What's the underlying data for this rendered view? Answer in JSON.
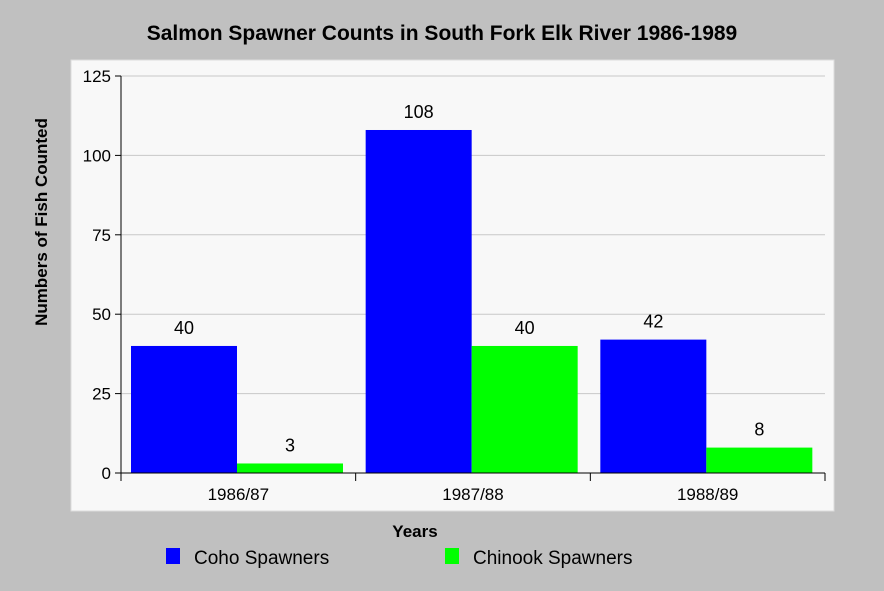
{
  "chart_data": {
    "type": "bar",
    "title": "Salmon Spawner Counts in South Fork Elk River 1986-1989",
    "xlabel": "Years",
    "ylabel": "Numbers of Fish Counted",
    "categories": [
      "1986/87",
      "1987/88",
      "1988/89"
    ],
    "series": [
      {
        "name": "Coho Spawners",
        "color": "#0000ff",
        "values": [
          40,
          108,
          42
        ]
      },
      {
        "name": "Chinook Spawners",
        "color": "#00ff00",
        "values": [
          3,
          40,
          8
        ]
      }
    ],
    "ylim": [
      0,
      125
    ],
    "yticks": [
      0,
      25,
      50,
      75,
      100,
      125
    ],
    "grid": true,
    "legend_position": "bottom",
    "colors": {
      "page_background": "#c0c0c0",
      "plot_background": "#f8f8f8",
      "gridline": "#c8c8c8"
    }
  }
}
